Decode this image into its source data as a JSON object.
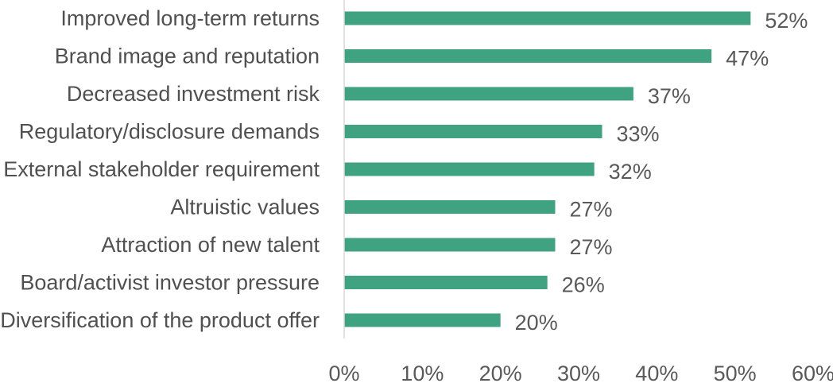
{
  "chart_data": {
    "type": "bar",
    "orientation": "horizontal",
    "categories": [
      "Improved long-term returns",
      "Brand image and reputation",
      "Decreased investment risk",
      "Regulatory/disclosure demands",
      "External stakeholder requirement",
      "Altruistic values",
      "Attraction of new talent",
      "Board/activist investor pressure",
      "Diversification of the product offer"
    ],
    "values": [
      52,
      47,
      37,
      33,
      32,
      27,
      27,
      26,
      20
    ],
    "value_labels": [
      "52%",
      "47%",
      "37%",
      "33%",
      "32%",
      "27%",
      "27%",
      "26%",
      "20%"
    ],
    "xlim": [
      0,
      60
    ],
    "xticks": [
      0,
      10,
      20,
      30,
      40,
      50,
      60
    ],
    "xtick_labels": [
      "0%",
      "10%",
      "20%",
      "30%",
      "40%",
      "50%",
      "60%"
    ],
    "title": "",
    "xlabel": "",
    "ylabel": "",
    "grid": false,
    "legend": "none",
    "bar_color": "#3fa281",
    "axis_color": "#d9d9d9"
  }
}
